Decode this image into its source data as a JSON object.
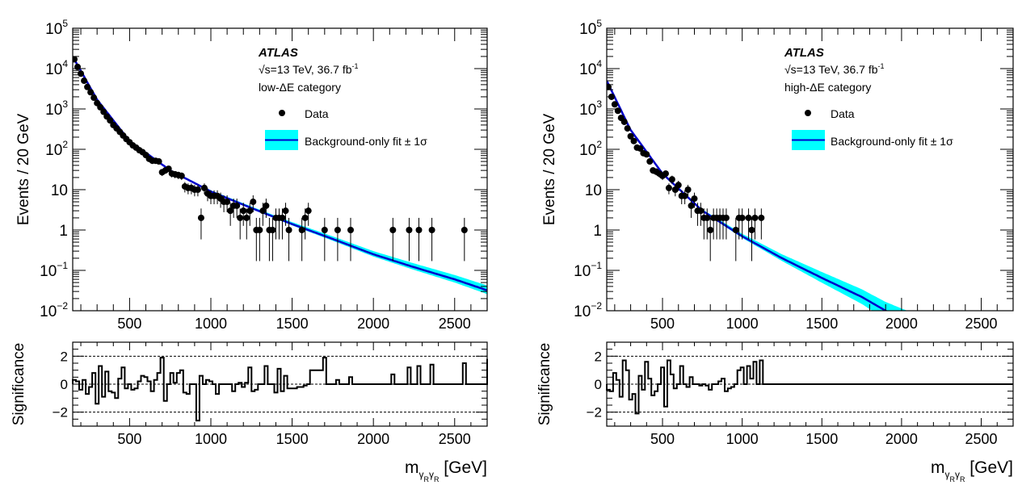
{
  "chart_data": [
    {
      "type": "scatter",
      "panel": "left",
      "title": "",
      "experiment_label": "ATLAS",
      "energy_label": "√s=13 TeV, 36.7 fb",
      "energy_sup": "-1",
      "category_label": "low-ΔE category",
      "legend": {
        "position": "top-right",
        "entries": [
          {
            "label": "Data",
            "kind": "marker"
          },
          {
            "label": "Background-only fit ± 1σ",
            "kind": "band-line"
          }
        ]
      },
      "ylabel": "Events / 20 GeV",
      "yscale": "log",
      "ylim": [
        0.01,
        100000
      ],
      "ytick_labels": [
        {
          "base": "10",
          "exp": "5",
          "v": 100000
        },
        {
          "base": "10",
          "exp": "4",
          "v": 10000
        },
        {
          "base": "10",
          "exp": "3",
          "v": 1000
        },
        {
          "base": "10",
          "exp": "2",
          "v": 100
        },
        {
          "base": "10",
          "exp": "",
          "v": 10
        },
        {
          "base": "1",
          "exp": "",
          "v": 1
        },
        {
          "base": "10",
          "exp": "−1",
          "v": 0.1
        },
        {
          "base": "10",
          "exp": "−2",
          "v": 0.01
        }
      ],
      "xlim": [
        150,
        2700
      ],
      "xticks": [
        500,
        1000,
        1500,
        2000,
        2500
      ],
      "xtick_labels": [
        "500",
        "1000",
        "1500",
        "2000",
        "2500"
      ],
      "data": {
        "x": [
          160,
          180,
          200,
          220,
          240,
          260,
          280,
          300,
          320,
          340,
          360,
          380,
          400,
          420,
          440,
          460,
          480,
          500,
          520,
          540,
          560,
          580,
          600,
          620,
          640,
          660,
          680,
          700,
          720,
          740,
          760,
          780,
          800,
          820,
          840,
          860,
          880,
          900,
          920,
          940,
          960,
          980,
          1000,
          1020,
          1040,
          1060,
          1080,
          1100,
          1120,
          1140,
          1160,
          1180,
          1200,
          1220,
          1240,
          1260,
          1280,
          1300,
          1320,
          1340,
          1360,
          1380,
          1400,
          1420,
          1440,
          1460,
          1480,
          1560,
          1580,
          1600,
          1700,
          1780,
          1860,
          2120,
          2220,
          2280,
          2360,
          2560
        ],
        "y": [
          17000,
          11000,
          7500,
          5000,
          3500,
          2600,
          1900,
          1400,
          1100,
          850,
          650,
          520,
          400,
          330,
          270,
          220,
          180,
          150,
          125,
          110,
          95,
          85,
          72,
          58,
          52,
          52,
          50,
          27,
          30,
          33,
          25,
          24,
          23,
          22,
          12,
          11,
          11,
          10,
          10,
          2,
          11,
          8,
          7,
          7,
          7,
          6,
          5,
          5,
          3,
          4,
          4,
          2,
          3,
          2,
          3,
          5,
          1,
          1,
          3,
          4,
          1,
          1,
          2,
          2,
          2,
          3,
          1,
          1,
          2,
          3,
          1,
          1,
          1,
          1,
          1,
          1,
          1,
          1
        ]
      },
      "fit": {
        "x": [
          150,
          300,
          500,
          750,
          1000,
          1250,
          1500,
          1750,
          2000,
          2250,
          2500,
          2700
        ],
        "y": [
          20000,
          1700,
          160,
          30,
          9,
          3.5,
          1.4,
          0.6,
          0.25,
          0.12,
          0.06,
          0.032
        ],
        "band_rel_err": [
          0.02,
          0.02,
          0.03,
          0.05,
          0.07,
          0.09,
          0.12,
          0.16,
          0.2,
          0.24,
          0.28,
          0.32
        ]
      },
      "ratio": {
        "ylabel": "Significance",
        "ylim": [
          -3,
          3
        ],
        "ytick_labels": [
          "2",
          "0",
          "−2"
        ],
        "reference_lines": [
          2,
          0,
          -2
        ],
        "bins": [
          150,
          170,
          190,
          210,
          230,
          250,
          270,
          290,
          310,
          330,
          350,
          370,
          390,
          410,
          430,
          450,
          470,
          490,
          510,
          530,
          550,
          570,
          590,
          610,
          630,
          650,
          670,
          690,
          710,
          730,
          750,
          770,
          790,
          810,
          830,
          850,
          870,
          890,
          910,
          930,
          950,
          970,
          990,
          1010,
          1030,
          1050,
          1070,
          1090,
          1110,
          1130,
          1150,
          1170,
          1190,
          1210,
          1230,
          1250,
          1270,
          1290,
          1310,
          1330,
          1350,
          1370,
          1390,
          1410,
          1430,
          1450,
          1470,
          1490,
          1510,
          1530,
          1550,
          1570,
          1590,
          1610,
          1690,
          1710,
          1770,
          1790,
          1850,
          1870,
          2110,
          2130,
          2210,
          2230,
          2270,
          2290,
          2350,
          2370,
          2550,
          2570,
          2700
        ],
        "values": [
          0.3,
          0.2,
          -0.4,
          0.3,
          -0.7,
          -0.2,
          0.8,
          -1.4,
          1.3,
          -0.9,
          0.9,
          -0.5,
          -0.6,
          -1.0,
          0.4,
          1.2,
          -0.3,
          0.0,
          -0.4,
          -0.3,
          0.2,
          0.6,
          0.5,
          0.2,
          -0.5,
          0.3,
          0.8,
          1.9,
          -1.2,
          0.0,
          0.8,
          0.1,
          0.8,
          1.0,
          -0.6,
          -0.7,
          0.0,
          0.0,
          -2.6,
          0.6,
          0.0,
          0.3,
          0.2,
          0.0,
          -0.7,
          0.0,
          0.0,
          0.0,
          0.0,
          -0.5,
          0.0,
          0.1,
          -0.2,
          0.1,
          1.2,
          -0.5,
          -0.4,
          0.0,
          0.0,
          1.3,
          0.0,
          0.0,
          -0.6,
          1.1,
          -0.5,
          0.6,
          -0.3,
          -0.3,
          -0.3,
          -0.2,
          -0.2,
          -0.1,
          0.0,
          1.0,
          1.9,
          0.0,
          0.3,
          0.0,
          0.5,
          0.0,
          0.7,
          0.0,
          1.2,
          0.0,
          1.3,
          0.0,
          1.4,
          0.0,
          1.5,
          0.0,
          1.8
        ]
      }
    },
    {
      "type": "scatter",
      "panel": "right",
      "title": "",
      "experiment_label": "ATLAS",
      "energy_label": "√s=13 TeV, 36.7 fb",
      "energy_sup": "-1",
      "category_label": "high-ΔE category",
      "legend": {
        "position": "top-right",
        "entries": [
          {
            "label": "Data",
            "kind": "marker"
          },
          {
            "label": "Background-only fit ± 1σ",
            "kind": "band-line"
          }
        ]
      },
      "ylabel": "Events / 20 GeV",
      "yscale": "log",
      "ylim": [
        0.01,
        100000
      ],
      "ytick_labels": [
        {
          "base": "10",
          "exp": "5",
          "v": 100000
        },
        {
          "base": "10",
          "exp": "4",
          "v": 10000
        },
        {
          "base": "10",
          "exp": "3",
          "v": 1000
        },
        {
          "base": "10",
          "exp": "2",
          "v": 100
        },
        {
          "base": "10",
          "exp": "",
          "v": 10
        },
        {
          "base": "1",
          "exp": "",
          "v": 1
        },
        {
          "base": "10",
          "exp": "−1",
          "v": 0.1
        },
        {
          "base": "10",
          "exp": "−2",
          "v": 0.01
        }
      ],
      "xlim": [
        150,
        2700
      ],
      "xticks": [
        500,
        1000,
        1500,
        2000,
        2500
      ],
      "xtick_labels": [
        "500",
        "1000",
        "1500",
        "2000",
        "2500"
      ],
      "data": {
        "x": [
          160,
          180,
          200,
          220,
          240,
          260,
          280,
          300,
          320,
          340,
          360,
          380,
          400,
          420,
          440,
          460,
          480,
          500,
          520,
          540,
          560,
          580,
          600,
          620,
          640,
          660,
          680,
          700,
          720,
          740,
          760,
          780,
          800,
          820,
          840,
          860,
          880,
          900,
          960,
          980,
          1000,
          1040,
          1060,
          1080,
          1120
        ],
        "y": [
          3500,
          2000,
          1300,
          900,
          600,
          480,
          330,
          210,
          160,
          110,
          105,
          80,
          75,
          50,
          30,
          28,
          25,
          22,
          25,
          11,
          18,
          10,
          13,
          7,
          7,
          10,
          4,
          6,
          3,
          3,
          2,
          2,
          1,
          2,
          2,
          2,
          2,
          2,
          1,
          2,
          2,
          2,
          1,
          2,
          2
        ]
      },
      "fit": {
        "x": [
          150,
          300,
          500,
          750,
          1000,
          1250,
          1500,
          1750,
          1900,
          2000,
          2250,
          2700
        ],
        "y": [
          5000,
          300,
          25,
          3,
          0.7,
          0.2,
          0.065,
          0.022,
          0.01,
          0.0065,
          0.0025,
          0.0006
        ],
        "band_rel_err": [
          0.02,
          0.03,
          0.05,
          0.08,
          0.15,
          0.25,
          0.4,
          0.55,
          0.65,
          0.75,
          0.9,
          1.0
        ]
      },
      "ratio": {
        "ylabel": "Significance",
        "ylim": [
          -3,
          3
        ],
        "ytick_labels": [
          "2",
          "0",
          "−2"
        ],
        "reference_lines": [
          2,
          0,
          -2
        ],
        "bins": [
          150,
          170,
          190,
          210,
          230,
          250,
          270,
          290,
          310,
          330,
          350,
          370,
          390,
          410,
          430,
          450,
          470,
          490,
          510,
          530,
          550,
          570,
          590,
          610,
          630,
          650,
          670,
          690,
          710,
          730,
          750,
          770,
          790,
          810,
          830,
          850,
          870,
          890,
          910,
          930,
          950,
          970,
          990,
          1010,
          1030,
          1050,
          1070,
          1090,
          1110,
          1130,
          2700
        ],
        "values": [
          -0.4,
          -0.5,
          0.8,
          0.3,
          -0.9,
          1.7,
          1.0,
          -1.1,
          -0.7,
          -2.1,
          0.6,
          -0.4,
          1.6,
          0.4,
          -0.8,
          -0.5,
          0.0,
          1.2,
          -1.6,
          1.7,
          0.7,
          -0.3,
          0.0,
          1.3,
          0.0,
          -0.2,
          0.5,
          0.0,
          0.0,
          -0.1,
          0.0,
          -0.1,
          -0.4,
          0.0,
          0.0,
          0.2,
          0.4,
          -0.5,
          -0.3,
          -0.2,
          0.0,
          1.0,
          1.2,
          0.0,
          1.3,
          0.4,
          1.6,
          0.0,
          1.7,
          0.0
        ]
      }
    }
  ]
}
